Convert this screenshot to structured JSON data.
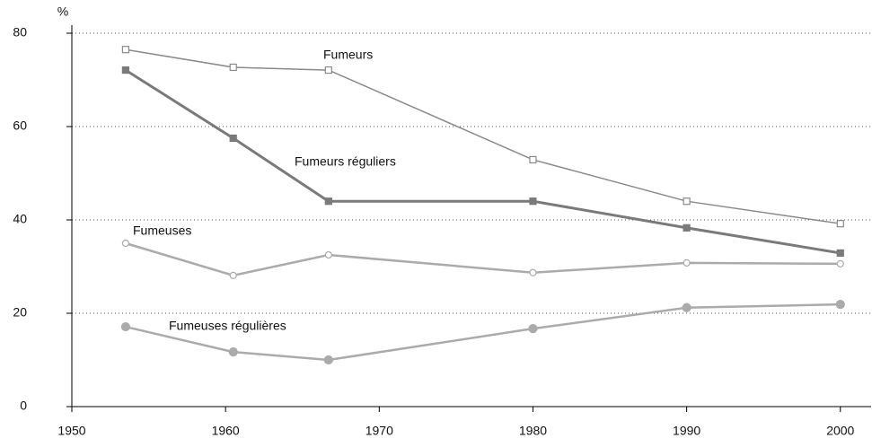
{
  "chart_data": {
    "type": "line",
    "y_label": "%",
    "x": [
      1953.5,
      1960.5,
      1966.7,
      1980,
      1990,
      2000
    ],
    "series": [
      {
        "name": "Fumeurs",
        "color": "#8a8a8a",
        "marker": "square",
        "filled": false,
        "line_width": 1.5,
        "values": [
          76.5,
          72.7,
          72.1,
          52.9,
          44,
          39.2
        ]
      },
      {
        "name": "Fumeurs réguliers",
        "color": "#7a7a7a",
        "marker": "square",
        "filled": true,
        "line_width": 3,
        "values": [
          72.1,
          57.5,
          44,
          44,
          38.3,
          32.9
        ]
      },
      {
        "name": "Fumeuses",
        "color": "#ababab",
        "marker": "circle",
        "filled": false,
        "line_width": 2.5,
        "values": [
          35,
          28.1,
          32.5,
          28.7,
          30.8,
          30.6
        ]
      },
      {
        "name": "Fumeuses régulières",
        "color": "#ababab",
        "marker": "circle",
        "filled": true,
        "line_width": 2.5,
        "values": [
          17.1,
          11.7,
          10,
          16.7,
          21.2,
          21.9
        ]
      }
    ],
    "xlim": [
      1950,
      2002
    ],
    "xticks": [
      1950,
      1960,
      1970,
      1980,
      1990,
      2000
    ],
    "ylim": [
      0,
      80
    ],
    "yticks": [
      0,
      20,
      40,
      60,
      80
    ],
    "grid": true
  }
}
